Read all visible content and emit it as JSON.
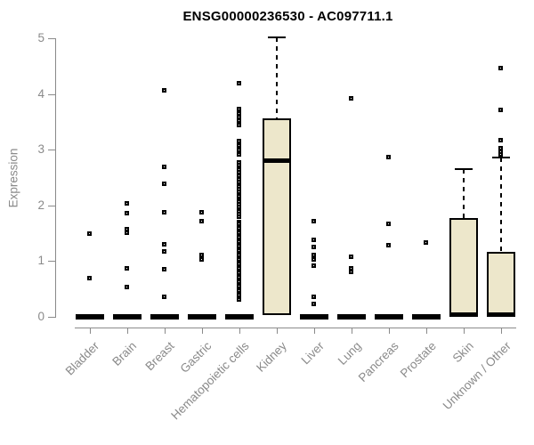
{
  "chart_data": {
    "type": "boxplot",
    "title": "ENSG00000236530 - AC097711.1",
    "ylabel": "Expression",
    "ylim": [
      0,
      5
    ],
    "yticks": [
      0,
      1,
      2,
      3,
      4,
      5
    ],
    "grid": false,
    "legend": "none",
    "colors": {
      "box_fill": "#EDE7CB",
      "box_border": "#000000",
      "median": "#000000",
      "axis": "#8a8a8a",
      "title_text": "#000000",
      "background": "#ffffff"
    },
    "categories": [
      "Bladder",
      "Brain",
      "Breast",
      "Gastric",
      "Hematopoietic cells",
      "Kidney",
      "Liver",
      "Lung",
      "Pancreas",
      "Prostate",
      "Skin",
      "Unknown / Other"
    ],
    "series": [
      {
        "category": "Bladder",
        "box": {
          "q1": 0,
          "median": 0,
          "q3": 0,
          "whisker_low": null,
          "whisker_high": null,
          "flat": true
        },
        "outliers": [
          1.48,
          0.69
        ]
      },
      {
        "category": "Brain",
        "box": {
          "q1": 0,
          "median": 0,
          "q3": 0,
          "whisker_low": null,
          "whisker_high": null,
          "flat": true
        },
        "outliers": [
          2.03,
          1.86,
          1.57,
          1.5,
          0.87,
          0.53
        ]
      },
      {
        "category": "Breast",
        "box": {
          "q1": 0,
          "median": 0,
          "q3": 0,
          "whisker_low": null,
          "whisker_high": null,
          "flat": true
        },
        "outliers": [
          4.05,
          2.69,
          2.38,
          1.87,
          1.3,
          1.16,
          0.85,
          0.35
        ]
      },
      {
        "category": "Gastric",
        "box": {
          "q1": 0,
          "median": 0,
          "q3": 0,
          "whisker_low": null,
          "whisker_high": null,
          "flat": true
        },
        "outliers": [
          1.87,
          1.71,
          1.1,
          1.02
        ]
      },
      {
        "category": "Hematopoietic cells",
        "box": {
          "q1": 0,
          "median": 0,
          "q3": 0,
          "whisker_low": null,
          "whisker_high": null,
          "flat": true
        },
        "outliers": [
          4.19,
          3.73,
          3.65,
          3.58,
          3.51,
          3.44,
          3.14,
          3.06,
          2.98,
          2.91,
          2.77,
          2.71,
          2.64,
          2.58,
          2.52,
          2.46,
          2.42,
          2.37,
          2.33,
          2.28,
          2.24,
          2.19,
          2.15,
          2.1,
          2.06,
          2.01,
          1.97,
          1.92,
          1.88,
          1.83,
          1.79,
          1.7,
          1.66,
          1.62,
          1.58,
          1.54,
          1.5,
          1.46,
          1.42,
          1.38,
          1.34,
          1.3,
          1.26,
          1.22,
          1.18,
          1.14,
          1.1,
          1.06,
          1.02,
          0.98,
          0.94,
          0.9,
          0.86,
          0.82,
          0.78,
          0.74,
          0.7,
          0.66,
          0.62,
          0.58,
          0.54,
          0.5,
          0.46,
          0.42,
          0.38,
          0.34,
          0.31
        ]
      },
      {
        "category": "Kidney",
        "box": {
          "q1": 0.03,
          "median": 2.8,
          "q3": 3.56,
          "whisker_low": null,
          "whisker_high": 5.02,
          "flat": false
        },
        "outliers": []
      },
      {
        "category": "Liver",
        "box": {
          "q1": 0,
          "median": 0,
          "q3": 0,
          "whisker_low": null,
          "whisker_high": null,
          "flat": true
        },
        "outliers": [
          1.71,
          1.38,
          1.25,
          1.1,
          1.03,
          0.91,
          0.35,
          0.22
        ]
      },
      {
        "category": "Lung",
        "box": {
          "q1": 0,
          "median": 0,
          "q3": 0,
          "whisker_low": null,
          "whisker_high": null,
          "flat": true
        },
        "outliers": [
          3.92,
          1.07,
          0.86,
          0.8
        ]
      },
      {
        "category": "Pancreas",
        "box": {
          "q1": 0,
          "median": 0,
          "q3": 0,
          "whisker_low": null,
          "whisker_high": null,
          "flat": true
        },
        "outliers": [
          2.86,
          1.66,
          1.27
        ]
      },
      {
        "category": "Prostate",
        "box": {
          "q1": 0,
          "median": 0,
          "q3": 0,
          "whisker_low": null,
          "whisker_high": null,
          "flat": true
        },
        "outliers": [
          1.32
        ]
      },
      {
        "category": "Skin",
        "box": {
          "q1": 0.02,
          "median": 0.04,
          "q3": 1.77,
          "whisker_low": null,
          "whisker_high": 2.65,
          "flat": false
        },
        "outliers": []
      },
      {
        "category": "Unknown / Other",
        "box": {
          "q1": 0.02,
          "median": 0.04,
          "q3": 1.17,
          "whisker_low": null,
          "whisker_high": 2.86,
          "flat": false
        },
        "outliers": [
          4.45,
          3.71,
          3.17,
          3.02,
          2.96,
          2.9
        ]
      }
    ]
  }
}
